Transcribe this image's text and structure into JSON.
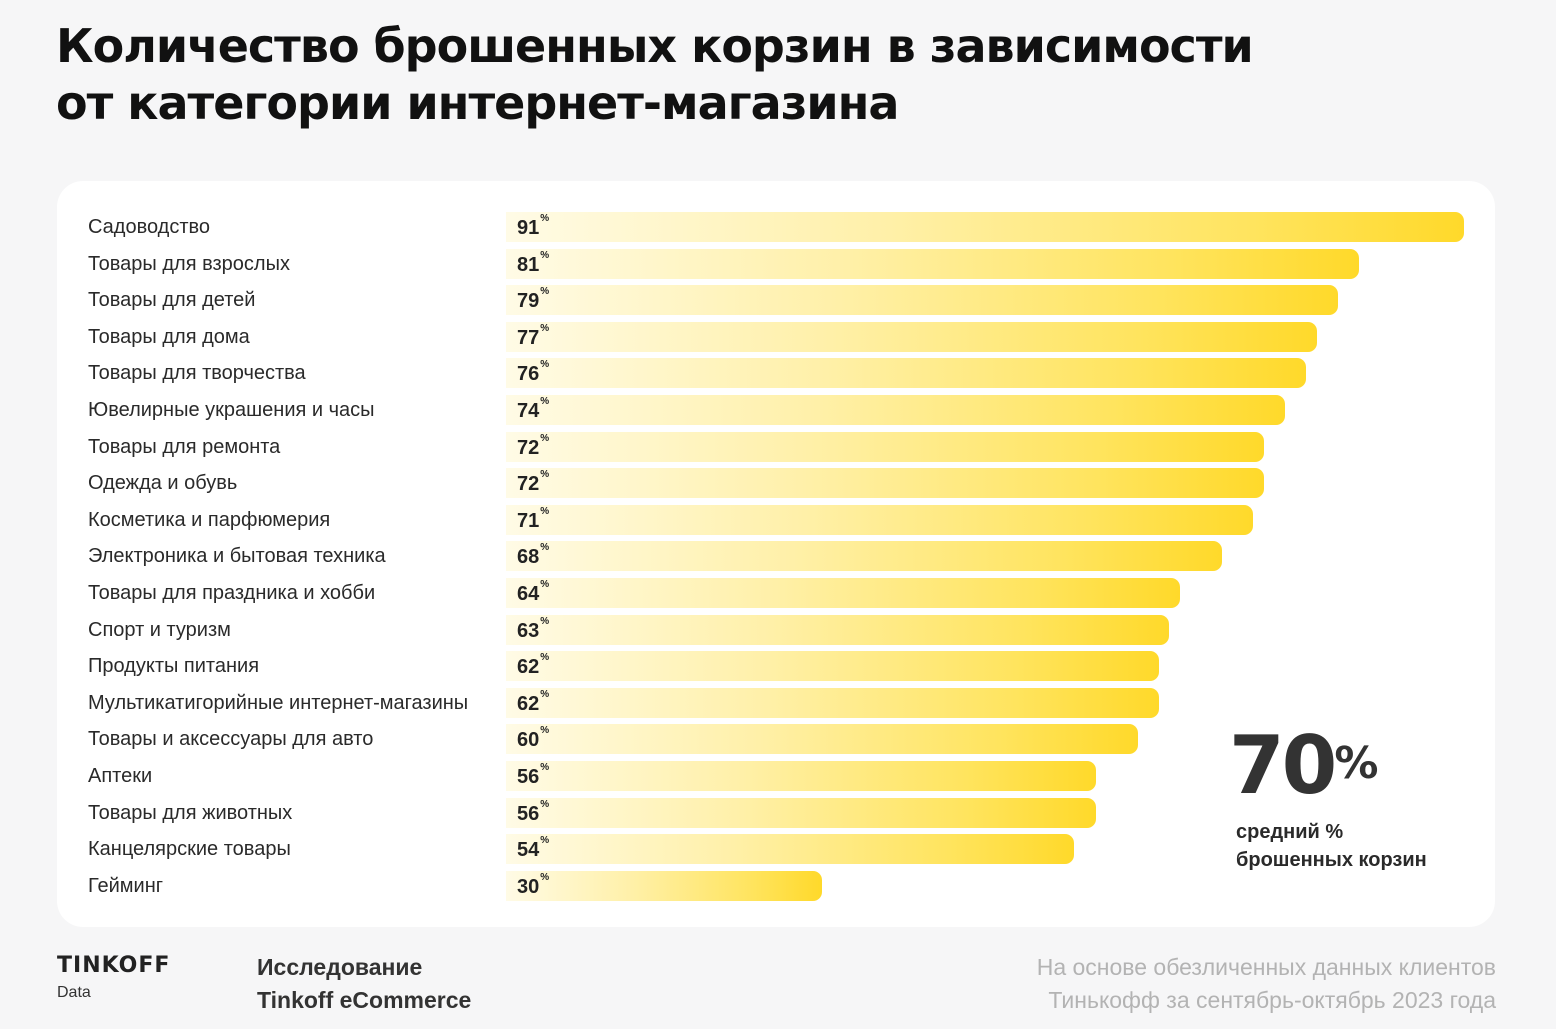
{
  "title": {
    "line1": "Количество брошенных корзин в зависимости",
    "line2": "от категории интернет-магазина"
  },
  "chart_data": {
    "type": "bar",
    "orientation": "horizontal",
    "value_suffix": "%",
    "xlim": [
      0,
      91
    ],
    "categories": [
      "Садоводство",
      "Товары для взрослых",
      "Товары для детей",
      "Товары для дома",
      "Товары для творчества",
      "Ювелирные украшения и часы",
      "Товары для ремонта",
      "Одежда и обувь",
      "Косметика и парфюмерия",
      "Электроника и бытовая техника",
      "Товары для праздника и хобби",
      "Спорт и туризм",
      "Продукты питания",
      "Мультикатигорийные интернет-магазины",
      "Товары и аксессуары для авто",
      "Аптеки",
      "Товары для животных",
      "Канцелярские товары",
      "Гейминг"
    ],
    "values": [
      91,
      81,
      79,
      77,
      76,
      74,
      72,
      72,
      71,
      68,
      64,
      63,
      62,
      62,
      60,
      56,
      56,
      54,
      30
    ],
    "colors": {
      "bar_start": "#fffbe6",
      "bar_end": "#ffd92a"
    }
  },
  "average": {
    "value": "70",
    "unit": "%",
    "caption_line1": "средний %",
    "caption_line2": "брошенных корзин"
  },
  "footer": {
    "logo_name": "TINKOFF",
    "logo_sub": "Data",
    "research_line1": "Исследование",
    "research_line2": "Tinkoff eCommerce",
    "source_line1": "На основе обезличенных данных клиентов",
    "source_line2": "Тинькофф за сентябрь-октябрь 2023 года"
  }
}
